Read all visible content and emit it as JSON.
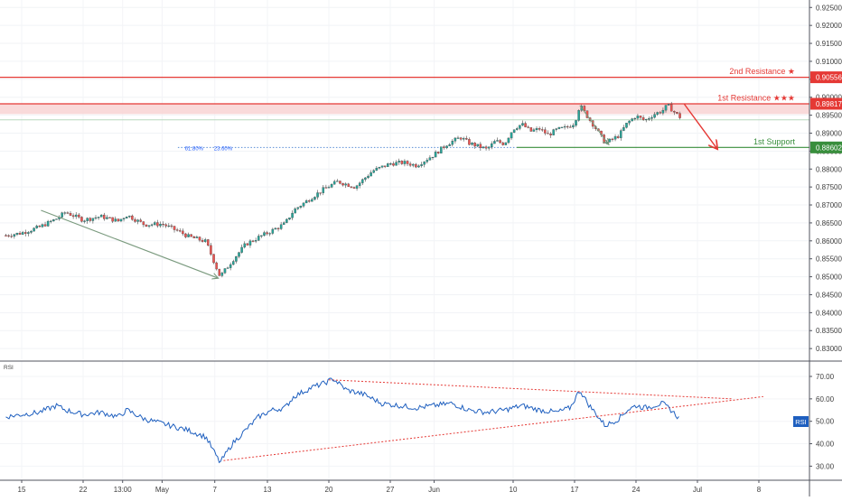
{
  "chart_data": [
    {
      "type": "candlestick",
      "panel": "price",
      "title": "",
      "xlabel": "",
      "ylabel": "",
      "ylim": [
        0.8265,
        0.9262
      ],
      "y_ticks": [
        "0.92500",
        "0.92000",
        "0.91500",
        "0.91000",
        "0.90500",
        "0.90000",
        "0.89500",
        "0.89000",
        "0.88500",
        "0.88000",
        "0.87500",
        "0.87000",
        "0.86500",
        "0.86000",
        "0.85500",
        "0.85000",
        "0.84500",
        "0.84000",
        "0.83500",
        "0.83000"
      ],
      "x_ticks": [
        {
          "label": "15",
          "day": 0
        },
        {
          "label": "22",
          "day": 7
        },
        {
          "label": "13:00",
          "day": 11.5
        },
        {
          "label": "May",
          "day": 16
        },
        {
          "label": "7",
          "day": 22
        },
        {
          "label": "13",
          "day": 28
        },
        {
          "label": "20",
          "day": 35
        },
        {
          "label": "27",
          "day": 42
        },
        {
          "label": "Jun",
          "day": 47
        },
        {
          "label": "10",
          "day": 56
        },
        {
          "label": "17",
          "day": 63
        },
        {
          "label": "24",
          "day": 70
        },
        {
          "label": "Jul",
          "day": 77
        },
        {
          "label": "8",
          "day": 84
        }
      ],
      "price_path": [
        [
          -1.8,
          0.8615
        ],
        [
          0,
          0.8622
        ],
        [
          2,
          0.8638
        ],
        [
          4,
          0.8662
        ],
        [
          5,
          0.868
        ],
        [
          7,
          0.8658
        ],
        [
          9,
          0.8668
        ],
        [
          11,
          0.8655
        ],
        [
          12,
          0.8672
        ],
        [
          14,
          0.8645
        ],
        [
          16,
          0.8647
        ],
        [
          18,
          0.8625
        ],
        [
          19,
          0.8612
        ],
        [
          21,
          0.8598
        ],
        [
          22.6,
          0.85
        ],
        [
          24,
          0.8545
        ],
        [
          25.5,
          0.859
        ],
        [
          27,
          0.861
        ],
        [
          28.5,
          0.8628
        ],
        [
          30,
          0.8648
        ],
        [
          31,
          0.8685
        ],
        [
          33,
          0.872
        ],
        [
          34.5,
          0.8745
        ],
        [
          36,
          0.8765
        ],
        [
          38,
          0.875
        ],
        [
          40,
          0.8795
        ],
        [
          42,
          0.8815
        ],
        [
          43.5,
          0.8818
        ],
        [
          45,
          0.881
        ],
        [
          47,
          0.884
        ],
        [
          48.5,
          0.887
        ],
        [
          50,
          0.8888
        ],
        [
          51,
          0.8872
        ],
        [
          53,
          0.8855
        ],
        [
          54,
          0.8878
        ],
        [
          55,
          0.887
        ],
        [
          56,
          0.8912
        ],
        [
          57,
          0.8925
        ],
        [
          58,
          0.8905
        ],
        [
          59,
          0.8912
        ],
        [
          60,
          0.8895
        ],
        [
          61,
          0.891
        ],
        [
          62,
          0.8915
        ],
        [
          63,
          0.8928
        ],
        [
          63.6,
          0.8978
        ],
        [
          64.5,
          0.8945
        ],
        [
          65.5,
          0.891
        ],
        [
          66.5,
          0.8872
        ],
        [
          68,
          0.8892
        ],
        [
          69,
          0.8928
        ],
        [
          70,
          0.8948
        ],
        [
          71,
          0.8935
        ],
        [
          72,
          0.8952
        ],
        [
          73,
          0.8962
        ],
        [
          73.6,
          0.8978
        ],
        [
          74.3,
          0.896
        ],
        [
          75,
          0.8945
        ]
      ],
      "levels": [
        {
          "name": "2nd Resistance",
          "star": "★",
          "value": 0.90556,
          "value_label": "0.90556",
          "color": "#e53935"
        },
        {
          "name": "1st Resistance",
          "star": "★★★",
          "value": 0.89817,
          "value_label": "0.89817",
          "color": "#e53935"
        },
        {
          "name": "1st Support",
          "star": "",
          "value": 0.88602,
          "value_label": "0.88602",
          "color": "#388e3c"
        }
      ],
      "resistance_zone": [
        0.8953,
        0.8983
      ],
      "fib_labels": [
        "61.80%",
        "23.60%"
      ],
      "annotations": {
        "down_arrow": {
          "from": [
            75.5,
            0.8981
          ],
          "to": [
            79.2,
            0.8858
          ],
          "color": "#e53935"
        },
        "swing_lines": [
          {
            "from": [
              2.2,
              0.8685
            ],
            "to": [
              22.4,
              0.8496
            ],
            "color": "#7a9a7e"
          },
          {
            "from": [
              63.6,
              0.8977
            ],
            "to": [
              66.9,
              0.8868
            ],
            "color": "#7a9a7e"
          }
        ]
      }
    },
    {
      "type": "line",
      "panel": "rsi",
      "title": "RSI",
      "ylim": [
        25,
        72.5
      ],
      "y_ticks": [
        "70.00",
        "60.00",
        "50.00",
        "40.00",
        "30.00"
      ],
      "last_value_label": "RSI",
      "series": [
        {
          "color": "#1e5fbf",
          "points": [
            [
              -1.8,
              52
            ],
            [
              0,
              53
            ],
            [
              2,
              54
            ],
            [
              4,
              57
            ],
            [
              5,
              55
            ],
            [
              7,
              53
            ],
            [
              9,
              54
            ],
            [
              11,
              52
            ],
            [
              12,
              55
            ],
            [
              14,
              51
            ],
            [
              16,
              49
            ],
            [
              18,
              47
            ],
            [
              19,
              46
            ],
            [
              21,
              43
            ],
            [
              22.6,
              31.5
            ],
            [
              24,
              40
            ],
            [
              25.5,
              46
            ],
            [
              27,
              52
            ],
            [
              28.5,
              55
            ],
            [
              30,
              56
            ],
            [
              31,
              61
            ],
            [
              33,
              65
            ],
            [
              34.5,
              67
            ],
            [
              35.5,
              69
            ],
            [
              37,
              64
            ],
            [
              39,
              62
            ],
            [
              41,
              58
            ],
            [
              43,
              57
            ],
            [
              45,
              56
            ],
            [
              47,
              57
            ],
            [
              49,
              58
            ],
            [
              51,
              55
            ],
            [
              53,
              54
            ],
            [
              55,
              55
            ],
            [
              57,
              57
            ],
            [
              59,
              55
            ],
            [
              61,
              54
            ],
            [
              62.5,
              56
            ],
            [
              63.6,
              64
            ],
            [
              64.5,
              58
            ],
            [
              65.5,
              53
            ],
            [
              66.5,
              48
            ],
            [
              68,
              51
            ],
            [
              69,
              55
            ],
            [
              70,
              57
            ],
            [
              71,
              56
            ],
            [
              72,
              57
            ],
            [
              73,
              58
            ],
            [
              74,
              55
            ],
            [
              75,
              51
            ]
          ]
        }
      ],
      "trendlines": [
        {
          "from": [
            23,
            32.5
          ],
          "to": [
            84.5,
            61
          ],
          "color": "#e53935",
          "dashed": true
        },
        {
          "from": [
            35,
            68.5
          ],
          "to": [
            81,
            60
          ],
          "color": "#e53935",
          "dashed": true
        }
      ]
    }
  ]
}
